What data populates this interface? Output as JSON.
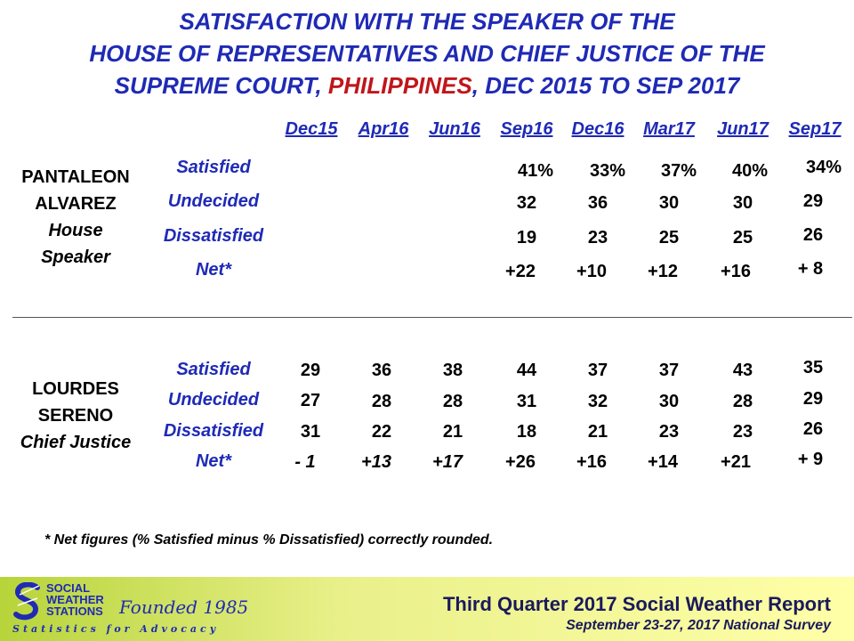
{
  "title": {
    "line1": "SATISFACTION  WITH THE SPEAKER OF THE",
    "line2": "HOUSE OF REPRESENTATIVES AND CHIEF JUSTICE OF THE",
    "line3_a": "SUPREME COURT, ",
    "line3_red": "PHILIPPINES",
    "line3_b": ", DEC 2015 TO SEP 2017"
  },
  "columns": [
    "Dec15",
    "Apr16",
    "Jun16",
    "Sep16",
    "Dec16",
    "Mar17",
    "Jun17",
    "Sep17"
  ],
  "row_labels": [
    "Satisfied",
    "Undecided",
    "Dissatisfied",
    "Net*"
  ],
  "alvarez": {
    "name1": "PANTALEON",
    "name2": "ALVAREZ",
    "role1": "House",
    "role2": "Speaker",
    "satisfied": [
      "41%",
      "33%",
      "37%",
      "40%",
      "34%"
    ],
    "undecided": [
      "32",
      "36",
      "30",
      "30",
      "29"
    ],
    "dissatisfied": [
      "19",
      "23",
      "25",
      "25",
      "26"
    ],
    "net": [
      "+22",
      "+10",
      "+12",
      "+16",
      "+ 8"
    ]
  },
  "sereno": {
    "name1": "LOURDES",
    "name2": "SERENO",
    "role": "Chief Justice",
    "satisfied": [
      "29",
      "36",
      "38",
      "44",
      "37",
      "37",
      "43",
      "35"
    ],
    "undecided": [
      "27",
      "28",
      "28",
      "31",
      "32",
      "30",
      "28",
      "29"
    ],
    "dissatisfied": [
      "31",
      "22",
      "21",
      "18",
      "21",
      "23",
      "23",
      "26"
    ],
    "net": [
      "- 1",
      "+13",
      "+17",
      "+26",
      "+16",
      "+14",
      "+21",
      "+ 9"
    ]
  },
  "footnote": "* Net figures (% Satisfied minus % Dissatisfied) correctly rounded.",
  "footer": {
    "logo_line1": "SOCIAL",
    "logo_line2": "WEATHER",
    "logo_line3": "STATIONS",
    "founded": "Founded 1985",
    "tagline": "Statistics for Advocacy",
    "report": "Third Quarter 2017 Social Weather Report",
    "survey": "September 23-27, 2017 National Survey"
  },
  "colors": {
    "title_blue": "#1f2ab5",
    "title_red": "#c0161b"
  }
}
